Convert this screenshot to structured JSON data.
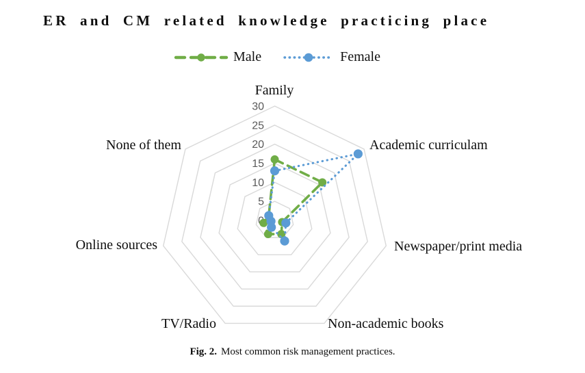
{
  "title": "ER and CM related knowledge practicing place",
  "caption": {
    "label": "Fig. 2.",
    "text": "Most common risk management practices."
  },
  "chart_data": {
    "type": "radar",
    "categories": [
      "Family",
      "Academic curriculam",
      "Newspaper/print media",
      "Non-academic books",
      "TV/Radio",
      "Online sources",
      "None of them"
    ],
    "series": [
      {
        "name": "Male",
        "color": "#70AD47",
        "line_style": "dashed",
        "marker": "circle",
        "values": [
          16,
          16,
          2,
          4,
          4,
          3,
          2
        ]
      },
      {
        "name": "Female",
        "color": "#5B9BD5",
        "line_style": "dotted",
        "marker": "circle",
        "values": [
          13,
          28,
          3,
          6,
          2,
          1,
          2
        ]
      }
    ],
    "rmax": 30,
    "rmin": 0,
    "ticks": [
      0,
      5,
      10,
      15,
      20,
      25,
      30
    ],
    "grid": "concentric heptagon rings, no radial spokes",
    "grid_color": "#D9D9D9",
    "tick_color": "#595959",
    "legend_position": "top"
  }
}
